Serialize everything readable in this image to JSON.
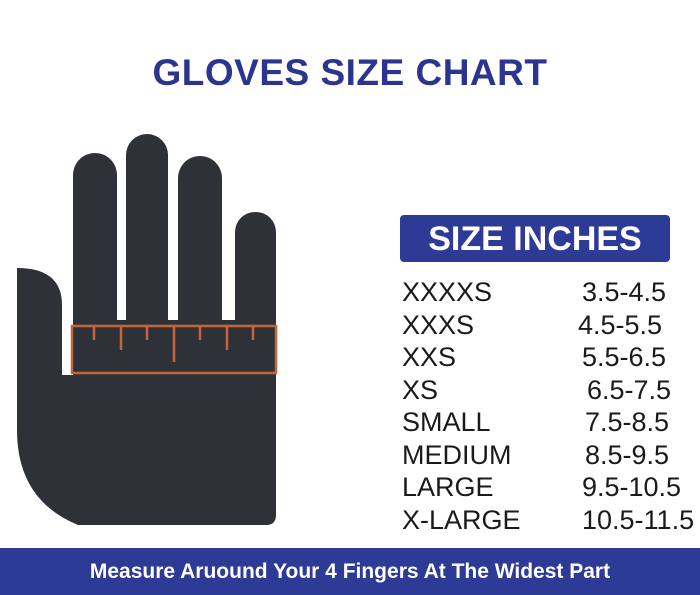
{
  "title": "GLOVES SIZE CHART",
  "table": {
    "header": "SIZE INCHES",
    "rows": [
      {
        "size": "XXXXS",
        "inches": "3.5-4.5"
      },
      {
        "size": "XXXS",
        "inches": "4.5-5.5"
      },
      {
        "size": "XXS",
        "inches": "5.5-6.5"
      },
      {
        "size": "XS",
        "inches": "6.5-7.5"
      },
      {
        "size": "SMALL",
        "inches": "7.5-8.5"
      },
      {
        "size": "MEDIUM",
        "inches": "8.5-9.5"
      },
      {
        "size": "LARGE",
        "inches": "9.5-10.5"
      },
      {
        "size": "X-LARGE",
        "inches": "10.5-11.5"
      }
    ]
  },
  "footer": "Measure Aruound Your 4 Fingers At The Widest Part",
  "colors": {
    "brand": "#2d3a96",
    "hand": "#2e3238",
    "ruler": "#c8623a"
  }
}
